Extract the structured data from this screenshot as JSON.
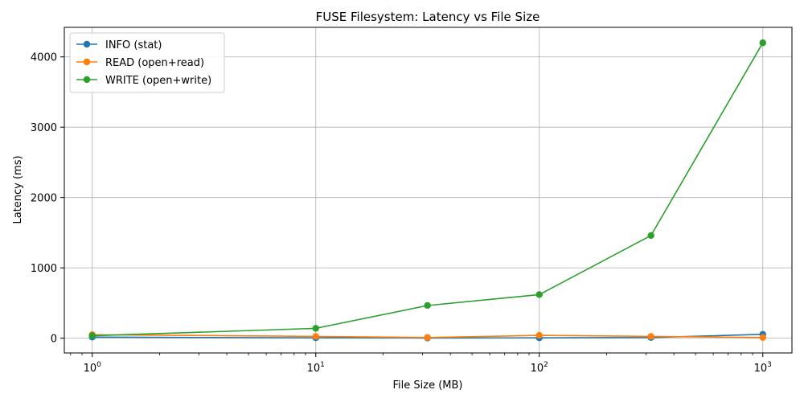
{
  "chart_data": {
    "type": "line",
    "title": "FUSE Filesystem: Latency vs File Size",
    "xlabel": "File Size (MB)",
    "ylabel": "Latency (ms)",
    "xscale": "log",
    "xlim": [
      0.75,
      1350
    ],
    "ylim": [
      -210,
      4420
    ],
    "x_ticks": [
      {
        "value": 1,
        "base": "10",
        "exp": "0"
      },
      {
        "value": 10,
        "base": "10",
        "exp": "1"
      },
      {
        "value": 100,
        "base": "10",
        "exp": "2"
      },
      {
        "value": 1000,
        "base": "10",
        "exp": "3"
      }
    ],
    "y_ticks": [
      0,
      1000,
      2000,
      3000,
      4000
    ],
    "grid": true,
    "legend_position": "top-left",
    "x": [
      1,
      10,
      31.6,
      100,
      316,
      1000
    ],
    "series": [
      {
        "name": "INFO (stat)",
        "color": "#1f77b4",
        "values": [
          15,
          5,
          3,
          5,
          10,
          55
        ]
      },
      {
        "name": "READ (open+read)",
        "color": "#ff7f0e",
        "values": [
          50,
          25,
          10,
          40,
          25,
          10
        ]
      },
      {
        "name": "WRITE (open+write)",
        "color": "#2ca02c",
        "values": [
          35,
          140,
          465,
          620,
          1460,
          4200
        ]
      }
    ]
  }
}
